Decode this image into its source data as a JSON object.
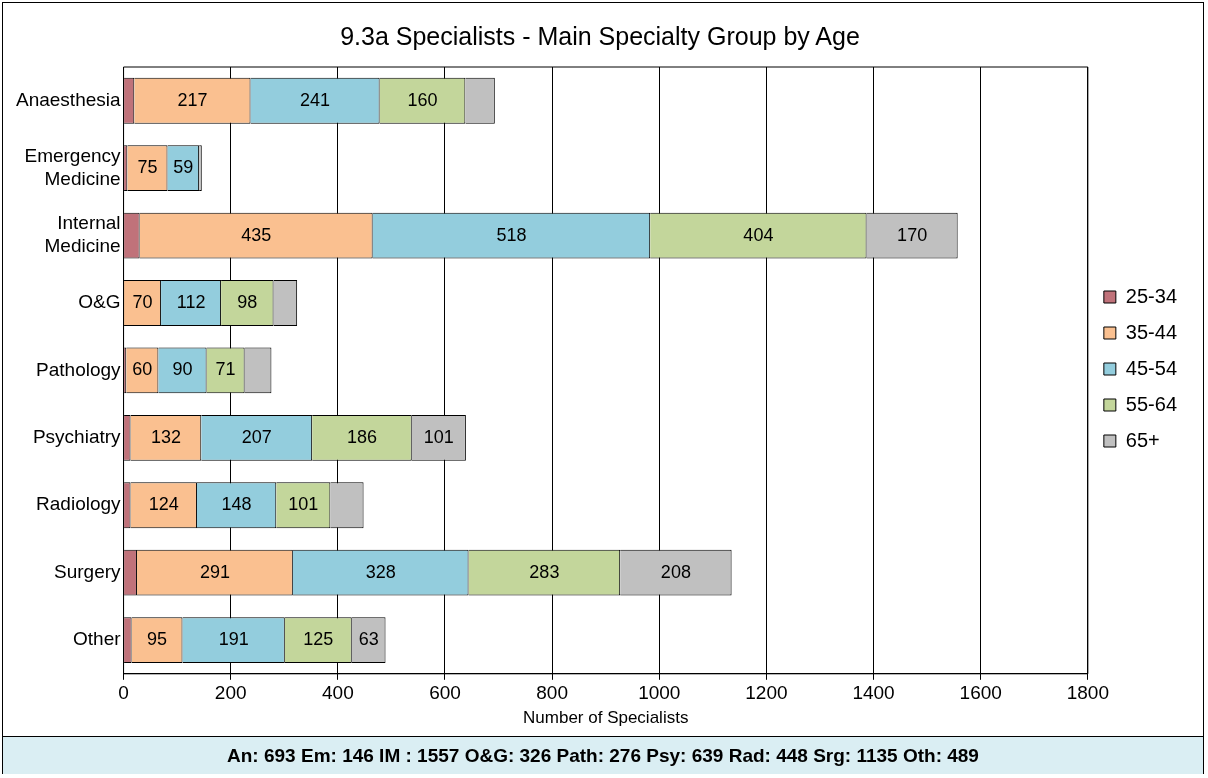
{
  "chart_data": {
    "type": "bar",
    "orientation": "horizontal",
    "stacked": true,
    "title": "9.3a Specialists - Main Specialty Group by Age",
    "xlabel": "Number of Specialists",
    "categories": [
      "Anaesthesia",
      "Emergency Medicine",
      "Internal Medicine",
      "O&G",
      "Pathology",
      "Psychiatry",
      "Radiology",
      "Surgery",
      "Other"
    ],
    "series": [
      {
        "name": "25-34",
        "color": "#c0727a",
        "values": [
          20,
          7,
          30,
          null,
          5,
          13,
          13,
          25,
          15
        ],
        "value_labels": [
          null,
          null,
          null,
          null,
          null,
          null,
          null,
          null,
          null
        ]
      },
      {
        "name": "35-44",
        "color": "#fac090",
        "values": [
          217,
          75,
          435,
          70,
          60,
          132,
          124,
          291,
          95
        ],
        "value_labels": [
          "217",
          "75",
          "435",
          "70",
          "60",
          "132",
          "124",
          "291",
          "95"
        ]
      },
      {
        "name": "45-54",
        "color": "#93cddd",
        "values": [
          241,
          59,
          518,
          112,
          90,
          207,
          148,
          328,
          191
        ],
        "value_labels": [
          "241",
          "59",
          "518",
          "112",
          "90",
          "207",
          "148",
          "328",
          "191"
        ]
      },
      {
        "name": "55-64",
        "color": "#c3d69b",
        "values": [
          160,
          0,
          404,
          98,
          71,
          186,
          101,
          283,
          125
        ],
        "value_labels": [
          "160",
          null,
          "404",
          "98",
          "71",
          "186",
          "101",
          "283",
          "125"
        ]
      },
      {
        "name": "65+",
        "color": "#c0c0c0",
        "values": [
          55,
          5,
          170,
          44,
          50,
          101,
          62,
          208,
          63
        ],
        "value_labels": [
          null,
          null,
          "170",
          null,
          null,
          "101",
          null,
          "208",
          "63"
        ]
      }
    ],
    "xlim": [
      0,
      1800
    ],
    "xticks": [
      0,
      200,
      400,
      600,
      800,
      1000,
      1200,
      1400,
      1600,
      1800
    ],
    "grid": "x",
    "legend": "right",
    "annotations": [
      "An: 693   Em: 146   IM : 1557   O&G: 326   Path: 276   Psy: 639   Rad: 448   Srg: 1135   Oth: 489"
    ]
  }
}
